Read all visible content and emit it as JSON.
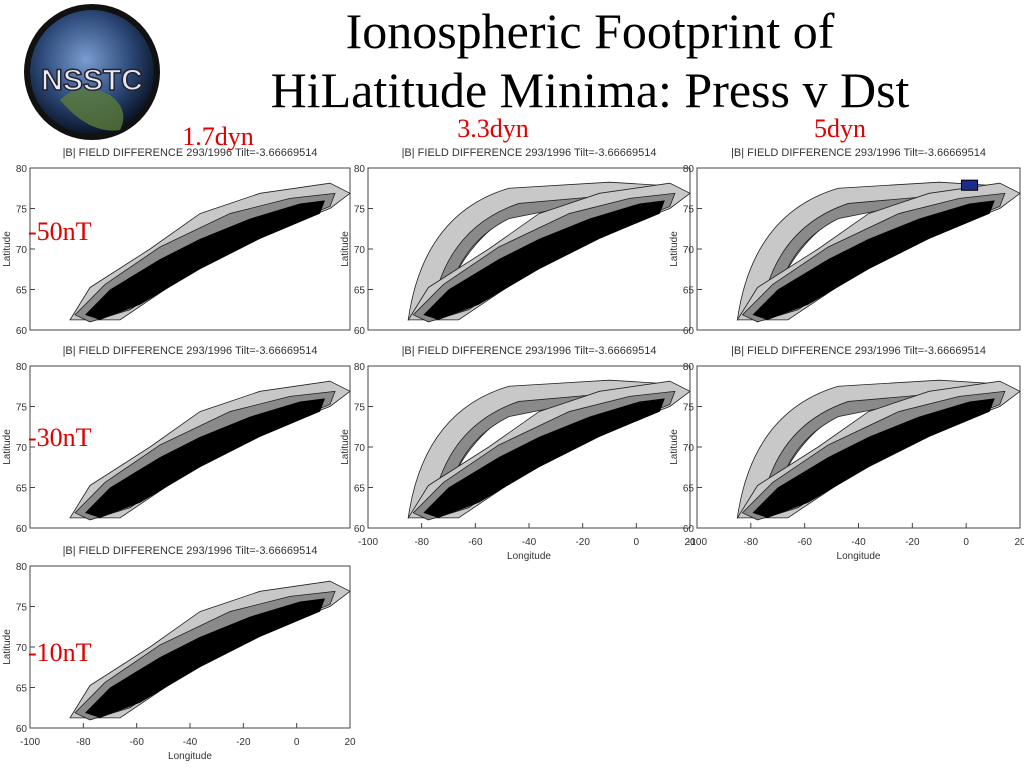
{
  "header": {
    "logo_text": "NSSTC",
    "title_lines": [
      "Ionospheric Footprint of",
      "HiLatitude Minima: Press v Dst"
    ]
  },
  "columns": [
    "1.7dyn",
    "3.3dyn",
    "5dyn"
  ],
  "rows": [
    "-50nT",
    "-30nT",
    "-10nT"
  ],
  "panels": [
    {
      "title": "|B| FIELD DIFFERENCE 293/1996 Tilt=-3.66669514"
    },
    {
      "title": "|B| FIELD DIFFERENCE 293/1996 Tilt=-3.66669514"
    },
    {
      "title": "|B| FIELD DIFFERENCE 293/1996 Tilt=-3.66669514"
    },
    {
      "title": "|B| FIELD DIFFERENCE 293/1996 Tilt=-3.66669514"
    },
    {
      "title": "|B| FIELD DIFFERENCE 293/1996 Tilt=-3.66669514"
    },
    {
      "title": "|B| FIELD DIFFERENCE 293/1996 Tilt=-3.66669514"
    },
    {
      "title": "|B| FIELD DIFFERENCE 293/1996 Tilt=-3.66669514"
    }
  ],
  "axes": {
    "y_label": "Latitude",
    "x_label": "Longitude",
    "y_ticks": [
      "60",
      "65",
      "70",
      "75",
      "80"
    ],
    "x_ticks": [
      "-100",
      "-80",
      "-60",
      "-40",
      "-20",
      "0",
      "20"
    ]
  }
}
